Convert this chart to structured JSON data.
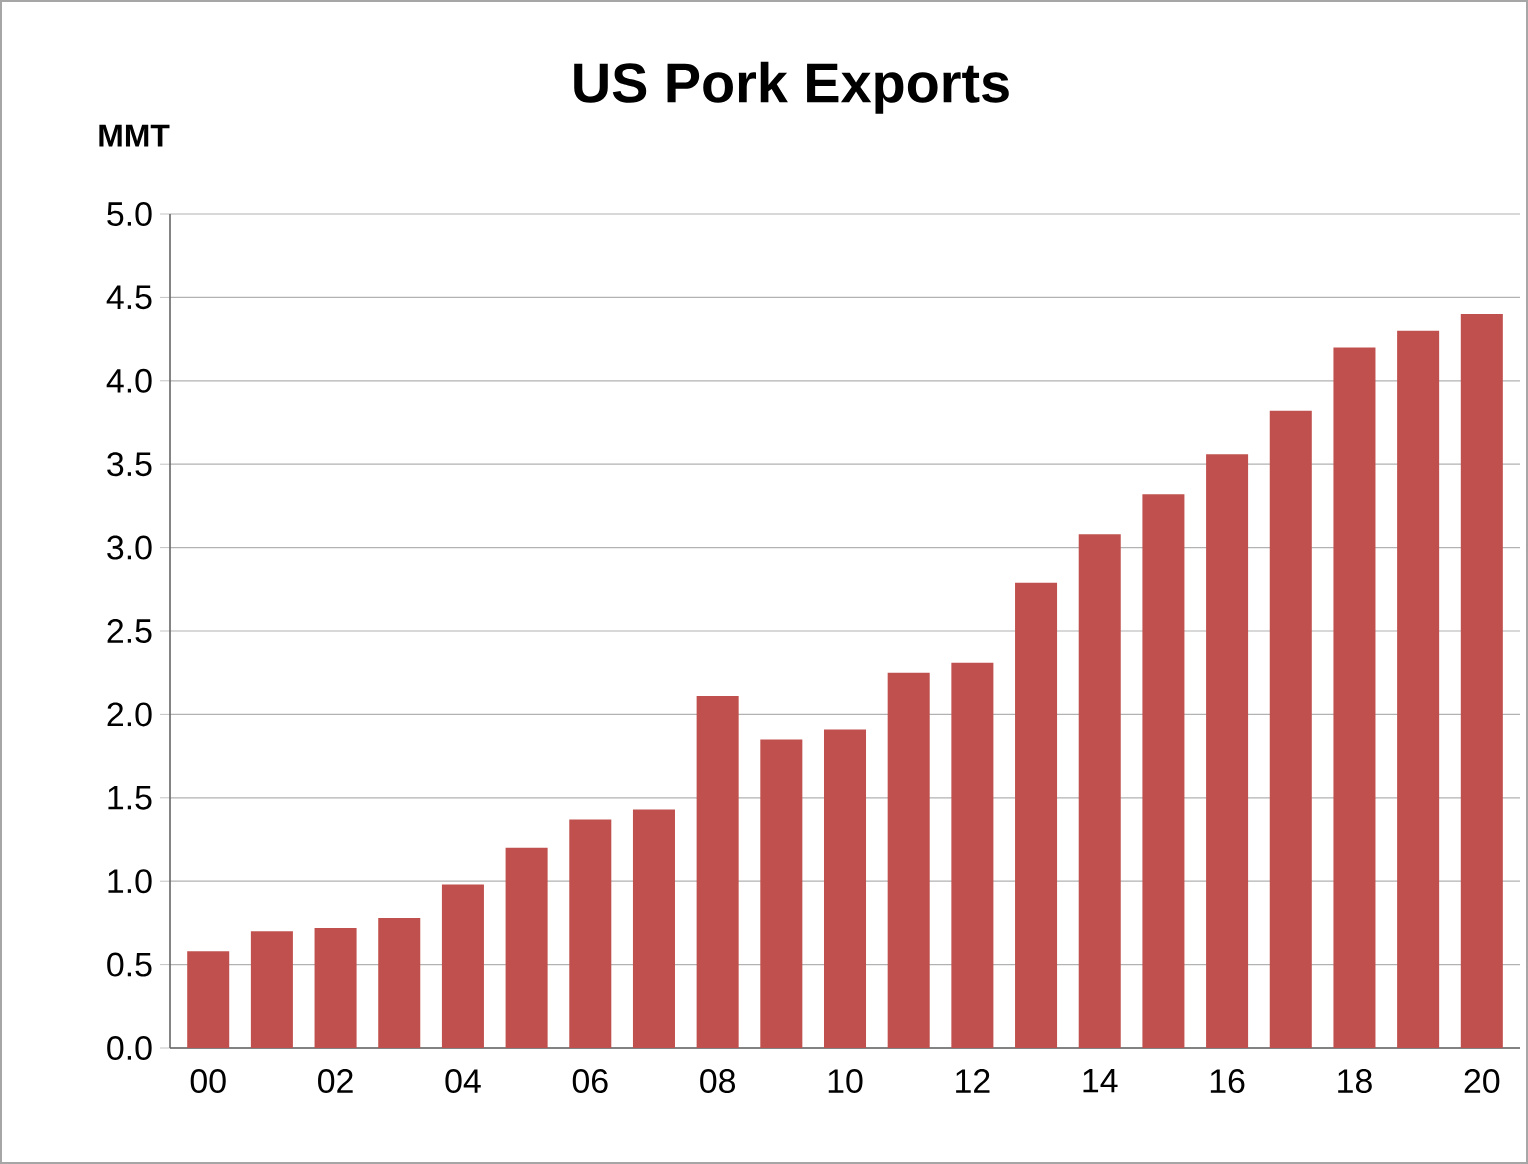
{
  "chart_data": {
    "type": "bar",
    "title": "US Pork Exports",
    "ylabel": "MMT",
    "categories": [
      "00",
      null,
      "02",
      null,
      "04",
      null,
      "06",
      null,
      "08",
      null,
      "10",
      null,
      "12",
      null,
      "14",
      null,
      "16",
      null,
      "18",
      null,
      "20"
    ],
    "values": [
      0.58,
      0.7,
      0.72,
      0.78,
      0.98,
      1.2,
      1.37,
      1.43,
      2.11,
      1.85,
      1.91,
      2.25,
      2.31,
      2.79,
      3.08,
      3.32,
      3.56,
      3.82,
      4.2,
      4.3,
      4.4
    ],
    "color": "#c0504d",
    "ylim": [
      0,
      5
    ],
    "yticks": [
      {
        "value": 0,
        "label": "0.0"
      },
      {
        "value": 0.5,
        "label": "0.5"
      },
      {
        "value": 1,
        "label": "1.0"
      },
      {
        "value": 1.5,
        "label": "1.5"
      },
      {
        "value": 2,
        "label": "2.0"
      },
      {
        "value": 2.5,
        "label": "2.5"
      },
      {
        "value": 3,
        "label": "3.0"
      },
      {
        "value": 3.5,
        "label": "3.5"
      },
      {
        "value": 4,
        "label": "4.0"
      },
      {
        "value": 4.5,
        "label": "4.5"
      },
      {
        "value": 5,
        "label": "5.0"
      }
    ],
    "grid": "y"
  }
}
